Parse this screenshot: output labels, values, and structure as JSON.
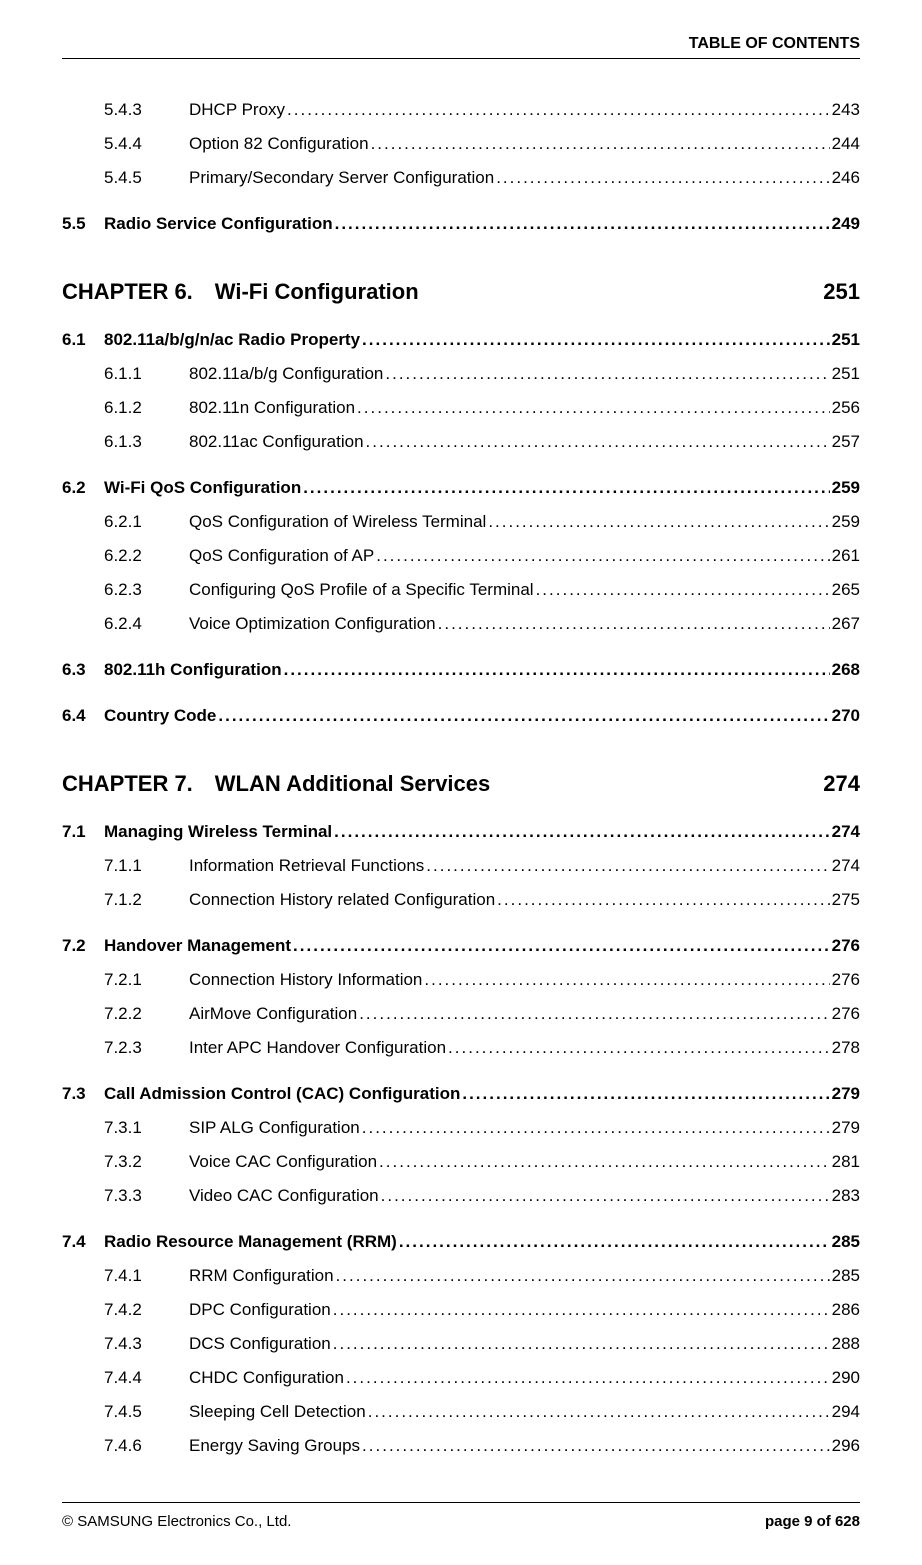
{
  "header": "TABLE OF CONTENTS",
  "entries": [
    {
      "type": "l3",
      "num": "5.4.3",
      "title": "DHCP Proxy",
      "page": "243",
      "extraTop": false
    },
    {
      "type": "l3",
      "num": "5.4.4",
      "title": "Option 82 Configuration",
      "page": "244",
      "extraTop": false
    },
    {
      "type": "l3",
      "num": "5.4.5",
      "title": "Primary/Secondary Server Configuration",
      "page": "246",
      "extraTop": false
    },
    {
      "type": "l2",
      "num": "5.5",
      "title": "Radio Service Configuration",
      "page": "249",
      "extraTop": true
    },
    {
      "type": "chapter",
      "title": "CHAPTER 6. Wi-Fi Configuration",
      "page": "251"
    },
    {
      "type": "l2",
      "num": "6.1",
      "title": "802.11a/b/g/n/ac Radio Property",
      "page": "251",
      "extraTop": false
    },
    {
      "type": "l3",
      "num": "6.1.1",
      "title": "802.11a/b/g Configuration",
      "page": "251",
      "extraTop": false
    },
    {
      "type": "l3",
      "num": "6.1.2",
      "title": "802.11n Configuration",
      "page": "256",
      "extraTop": false
    },
    {
      "type": "l3",
      "num": "6.1.3",
      "title": "802.11ac Configuration",
      "page": "257",
      "extraTop": false
    },
    {
      "type": "l2",
      "num": "6.2",
      "title": "Wi-Fi QoS Configuration",
      "page": "259",
      "extraTop": true
    },
    {
      "type": "l3",
      "num": "6.2.1",
      "title": "QoS Configuration of Wireless Terminal",
      "page": "259",
      "extraTop": false
    },
    {
      "type": "l3",
      "num": "6.2.2",
      "title": "QoS Configuration of AP",
      "page": "261",
      "extraTop": false
    },
    {
      "type": "l3",
      "num": "6.2.3",
      "title": "Configuring QoS Profile of a Specific Terminal",
      "page": "265",
      "extraTop": false
    },
    {
      "type": "l3",
      "num": "6.2.4",
      "title": "Voice Optimization Configuration",
      "page": "267",
      "extraTop": false
    },
    {
      "type": "l2",
      "num": "6.3",
      "title": "802.11h Configuration",
      "page": "268",
      "extraTop": true
    },
    {
      "type": "l2",
      "num": "6.4",
      "title": "Country Code",
      "page": "270",
      "extraTop": true
    },
    {
      "type": "chapter",
      "title": "CHAPTER 7. WLAN Additional Services",
      "page": "274"
    },
    {
      "type": "l2",
      "num": "7.1",
      "title": "Managing Wireless Terminal",
      "page": "274",
      "extraTop": false
    },
    {
      "type": "l3",
      "num": "7.1.1",
      "title": "Information Retrieval Functions",
      "page": "274",
      "extraTop": false
    },
    {
      "type": "l3",
      "num": "7.1.2",
      "title": "Connection History related Configuration",
      "page": "275",
      "extraTop": false
    },
    {
      "type": "l2",
      "num": "7.2",
      "title": "Handover Management",
      "page": "276",
      "extraTop": true
    },
    {
      "type": "l3",
      "num": "7.2.1",
      "title": "Connection History Information",
      "page": "276",
      "extraTop": false
    },
    {
      "type": "l3",
      "num": "7.2.2",
      "title": "AirMove Configuration",
      "page": "276",
      "extraTop": false
    },
    {
      "type": "l3",
      "num": "7.2.3",
      "title": "Inter APC Handover Configuration",
      "page": "278",
      "extraTop": false
    },
    {
      "type": "l2",
      "num": "7.3",
      "title": "Call Admission Control (CAC) Configuration",
      "page": "279",
      "extraTop": true
    },
    {
      "type": "l3",
      "num": "7.3.1",
      "title": "SIP ALG Configuration",
      "page": "279",
      "extraTop": false
    },
    {
      "type": "l3",
      "num": "7.3.2",
      "title": "Voice CAC Configuration",
      "page": "281",
      "extraTop": false
    },
    {
      "type": "l3",
      "num": "7.3.3",
      "title": "Video CAC Configuration",
      "page": "283",
      "extraTop": false
    },
    {
      "type": "l2",
      "num": "7.4",
      "title": "Radio Resource Management (RRM)",
      "page": "285",
      "extraTop": true
    },
    {
      "type": "l3",
      "num": "7.4.1",
      "title": "RRM Configuration",
      "page": "285",
      "extraTop": false
    },
    {
      "type": "l3",
      "num": "7.4.2",
      "title": "DPC Configuration",
      "page": "286",
      "extraTop": false
    },
    {
      "type": "l3",
      "num": "7.4.3",
      "title": "DCS Configuration",
      "page": "288",
      "extraTop": false
    },
    {
      "type": "l3",
      "num": "7.4.4",
      "title": "CHDC Configuration",
      "page": "290",
      "extraTop": false
    },
    {
      "type": "l3",
      "num": "7.4.5",
      "title": "Sleeping Cell Detection",
      "page": "294",
      "extraTop": false
    },
    {
      "type": "l3",
      "num": "7.4.6",
      "title": "Energy Saving Groups",
      "page": "296",
      "extraTop": false
    }
  ],
  "footer": {
    "left": "© SAMSUNG Electronics Co., Ltd.",
    "right": "page 9 of 628"
  }
}
